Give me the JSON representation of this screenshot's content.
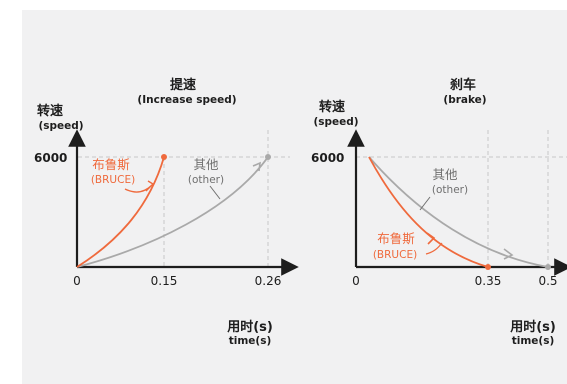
{
  "colors": {
    "background": "#f1f1f2",
    "bruce": "#ef6a3d",
    "other": "#a9a9a9",
    "axis": "#1d1d1d",
    "guide": "#c8c8c8"
  },
  "left_chart": {
    "title_cn": "提速",
    "title_en": "(Increase speed)",
    "y_label_cn": "转速",
    "y_label_en": "(speed)",
    "y_tick": "6000",
    "x_ticks": [
      "0",
      "0.15",
      "0.26"
    ],
    "x_label_cn": "用时(s)",
    "x_label_en": "time(s)",
    "bruce_label_cn": "布鲁斯",
    "bruce_label_en": "(BRUCE)",
    "other_label_cn": "其他",
    "other_label_en": "(other)"
  },
  "right_chart": {
    "title_cn": "刹车",
    "title_en": "(brake)",
    "y_label_cn": "转速",
    "y_label_en": "(speed)",
    "y_tick": "6000",
    "x_ticks": [
      "0",
      "0.35",
      "0.5"
    ],
    "x_label_cn": "用时(s)",
    "x_label_en": "time(s)",
    "bruce_label_cn": "布鲁斯",
    "bruce_label_en": "(BRUCE)",
    "other_label_cn": "其他",
    "other_label_en": "(other)"
  }
}
